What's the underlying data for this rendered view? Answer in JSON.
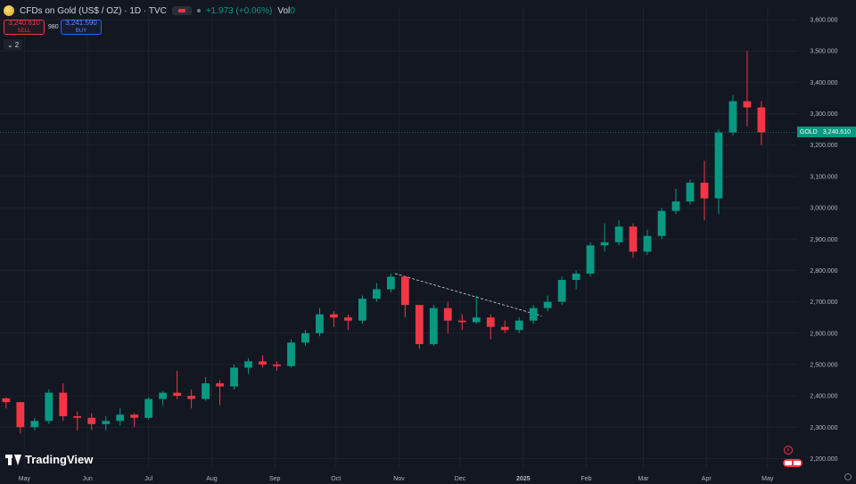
{
  "header": {
    "title": "CFDs on Gold (US$ / OZ) · 1D · TVC",
    "change": "+1.973 (+0.06%)",
    "vol_label": "Vol",
    "vol_value": "0"
  },
  "trade": {
    "sell_price": "3,240.610",
    "sell_label": "SELL",
    "spread": "980",
    "buy_price": "3,241.590",
    "buy_label": "BUY"
  },
  "indicators_toggle": "2",
  "price_tag": {
    "symbol": "GOLD",
    "price": "3,240.610"
  },
  "branding": {
    "logo_text": "TradingView"
  },
  "colors": {
    "background": "#131722",
    "up": "#089981",
    "down": "#f23645",
    "grid": "#1e222d",
    "axis_text": "#b2b5be",
    "price_line": "#089981"
  },
  "icons": [
    "gold-symbol-icon",
    "flag-icon",
    "chevron-down-icon",
    "lightning-icon",
    "us-flag-icon",
    "settings-icon"
  ],
  "chart_data": {
    "type": "candlestick",
    "title": "",
    "xlabel": "",
    "ylabel": "",
    "y_axis_side": "right",
    "ylim": [
      2170,
      3640
    ],
    "y_ticks": [
      "3,600.000",
      "3,500.000",
      "3,400.000",
      "3,300.000",
      "3,200.000",
      "3,100.000",
      "3,000.000",
      "2,900.000",
      "2,800.000",
      "2,700.000",
      "2,600.000",
      "2,500.000",
      "2,400.000",
      "2,300.000",
      "2,200.000"
    ],
    "y_tick_values": [
      3600,
      3500,
      3400,
      3300,
      3200,
      3100,
      3000,
      2900,
      2800,
      2700,
      2600,
      2500,
      2400,
      2300,
      2200
    ],
    "x_range": [
      "2024-04-19",
      "2025-05-16"
    ],
    "x_ticks": [
      {
        "date": "2024-05-01",
        "label": "May"
      },
      {
        "date": "2024-06-01",
        "label": "Jun"
      },
      {
        "date": "2024-07-01",
        "label": "Jul"
      },
      {
        "date": "2024-08-01",
        "label": "Aug"
      },
      {
        "date": "2024-09-01",
        "label": "Sep"
      },
      {
        "date": "2024-10-01",
        "label": "Oct"
      },
      {
        "date": "2024-11-01",
        "label": "Nov"
      },
      {
        "date": "2024-12-01",
        "label": "Dec"
      },
      {
        "date": "2025-01-01",
        "label": "2025",
        "bold": true
      },
      {
        "date": "2025-02-01",
        "label": "Feb"
      },
      {
        "date": "2025-03-01",
        "label": "Mar"
      },
      {
        "date": "2025-04-01",
        "label": "Apr"
      },
      {
        "date": "2025-05-01",
        "label": "May"
      }
    ],
    "grid": true,
    "last_price": 3240.61,
    "series": [
      {
        "points": [
          [
            "2024-04-22",
            2392,
            2395,
            2360,
            2380
          ],
          [
            "2024-04-29",
            2380,
            2340,
            2280,
            2300
          ],
          [
            "2024-05-06",
            2300,
            2330,
            2290,
            2320
          ],
          [
            "2024-05-13",
            2320,
            2420,
            2310,
            2410
          ],
          [
            "2024-05-20",
            2410,
            2440,
            2320,
            2335
          ],
          [
            "2024-05-27",
            2335,
            2350,
            2290,
            2330
          ],
          [
            "2024-06-03",
            2330,
            2345,
            2290,
            2310
          ],
          [
            "2024-06-10",
            2310,
            2335,
            2290,
            2320
          ],
          [
            "2024-06-17",
            2320,
            2360,
            2305,
            2340
          ],
          [
            "2024-06-24",
            2340,
            2345,
            2300,
            2330
          ],
          [
            "2024-07-01",
            2330,
            2395,
            2325,
            2390
          ],
          [
            "2024-07-08",
            2390,
            2415,
            2370,
            2410
          ],
          [
            "2024-07-15",
            2410,
            2480,
            2390,
            2400
          ],
          [
            "2024-07-22",
            2400,
            2420,
            2360,
            2390
          ],
          [
            "2024-07-29",
            2390,
            2460,
            2385,
            2440
          ],
          [
            "2024-08-05",
            2440,
            2450,
            2370,
            2430
          ],
          [
            "2024-08-12",
            2430,
            2500,
            2420,
            2490
          ],
          [
            "2024-08-19",
            2490,
            2520,
            2470,
            2510
          ],
          [
            "2024-08-26",
            2510,
            2530,
            2490,
            2500
          ],
          [
            "2024-09-02",
            2500,
            2510,
            2480,
            2495
          ],
          [
            "2024-09-09",
            2495,
            2580,
            2490,
            2570
          ],
          [
            "2024-09-16",
            2570,
            2610,
            2560,
            2600
          ],
          [
            "2024-09-23",
            2600,
            2680,
            2590,
            2660
          ],
          [
            "2024-09-30",
            2660,
            2670,
            2620,
            2650
          ],
          [
            "2024-10-07",
            2650,
            2660,
            2610,
            2640
          ],
          [
            "2024-10-14",
            2640,
            2720,
            2630,
            2710
          ],
          [
            "2024-10-21",
            2710,
            2760,
            2700,
            2740
          ],
          [
            "2024-10-28",
            2740,
            2790,
            2730,
            2780
          ],
          [
            "2024-11-04",
            2780,
            2750,
            2650,
            2690
          ],
          [
            "2024-11-11",
            2690,
            2640,
            2550,
            2565
          ],
          [
            "2024-11-18",
            2565,
            2690,
            2560,
            2680
          ],
          [
            "2024-11-25",
            2680,
            2700,
            2600,
            2640
          ],
          [
            "2024-12-02",
            2640,
            2660,
            2610,
            2635
          ],
          [
            "2024-12-09",
            2635,
            2720,
            2630,
            2650
          ],
          [
            "2024-12-16",
            2650,
            2660,
            2580,
            2620
          ],
          [
            "2024-12-23",
            2620,
            2640,
            2600,
            2610
          ],
          [
            "2024-12-30",
            2610,
            2650,
            2600,
            2640
          ],
          [
            "2025-01-06",
            2640,
            2690,
            2630,
            2680
          ],
          [
            "2025-01-13",
            2680,
            2720,
            2670,
            2700
          ],
          [
            "2025-01-20",
            2700,
            2780,
            2690,
            2770
          ],
          [
            "2025-01-27",
            2770,
            2800,
            2740,
            2790
          ],
          [
            "2025-02-03",
            2790,
            2890,
            2780,
            2880
          ],
          [
            "2025-02-10",
            2880,
            2950,
            2860,
            2890
          ],
          [
            "2025-02-17",
            2890,
            2960,
            2880,
            2940
          ],
          [
            "2025-02-24",
            2940,
            2950,
            2840,
            2860
          ],
          [
            "2025-03-03",
            2860,
            2930,
            2850,
            2910
          ],
          [
            "2025-03-10",
            2910,
            3000,
            2900,
            2990
          ],
          [
            "2025-03-17",
            2990,
            3060,
            2980,
            3020
          ],
          [
            "2025-03-24",
            3020,
            3090,
            3010,
            3080
          ],
          [
            "2025-03-31",
            3080,
            3150,
            2960,
            3030
          ],
          [
            "2025-04-07",
            3030,
            3250,
            2980,
            3240
          ],
          [
            "2025-04-14",
            3240,
            3360,
            3230,
            3340
          ],
          [
            "2025-04-21",
            3340,
            3500,
            3260,
            3320
          ],
          [
            "2025-04-28",
            3320,
            3340,
            3200,
            3240.61
          ]
        ]
      }
    ],
    "annotations": [
      {
        "type": "trendline",
        "style": "dashed",
        "from": {
          "date": "2024-10-30",
          "value": 2790
        },
        "to": {
          "date": "2025-01-10",
          "value": 2655
        }
      }
    ]
  }
}
